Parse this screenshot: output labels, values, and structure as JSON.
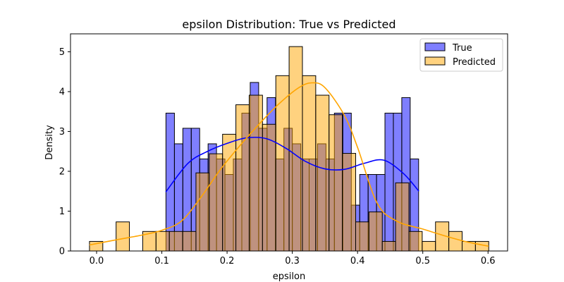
{
  "chart_data": {
    "type": "bar",
    "title": "epsilon Distribution: True vs Predicted",
    "xlabel": "epsilon",
    "ylabel": "Density",
    "xlim": [
      -0.04,
      0.63
    ],
    "ylim": [
      0,
      5.45
    ],
    "xticks": [
      "0.0",
      "0.1",
      "0.2",
      "0.3",
      "0.4",
      "0.5",
      "0.6"
    ],
    "xtick_values": [
      0.0,
      0.1,
      0.2,
      0.3,
      0.4,
      0.5,
      0.6
    ],
    "yticks": [
      "0",
      "1",
      "2",
      "3",
      "4",
      "5"
    ],
    "ytick_values": [
      0,
      1,
      2,
      3,
      4,
      5
    ],
    "grid": false,
    "legend_position": "top-right",
    "series": [
      {
        "name": "True",
        "kind": "histogram",
        "color": "#0000ff",
        "bin_edges": [
          0.1063,
          0.1193,
          0.1322,
          0.1451,
          0.158,
          0.1709,
          0.1838,
          0.1967,
          0.2096,
          0.2226,
          0.2355,
          0.2484,
          0.2613,
          0.2742,
          0.2871,
          0.3,
          0.3129,
          0.3258,
          0.3387,
          0.3516,
          0.3645,
          0.3774,
          0.3904,
          0.4033,
          0.4162,
          0.4291,
          0.442,
          0.4549,
          0.4678,
          0.4807,
          0.4936
        ],
        "values": [
          3.46,
          2.69,
          3.08,
          3.08,
          2.31,
          2.69,
          2.31,
          1.92,
          2.31,
          3.46,
          4.23,
          3.08,
          3.85,
          2.31,
          3.08,
          2.69,
          2.31,
          2.31,
          2.69,
          2.31,
          3.46,
          3.46,
          1.15,
          1.92,
          1.92,
          1.92,
          3.46,
          3.46,
          3.85,
          2.31
        ],
        "kde_x": [
          0.106,
          0.14,
          0.17,
          0.2,
          0.23,
          0.26,
          0.29,
          0.32,
          0.35,
          0.38,
          0.41,
          0.44,
          0.47,
          0.494
        ],
        "kde_y": [
          1.48,
          2.2,
          2.5,
          2.7,
          2.84,
          2.82,
          2.58,
          2.25,
          2.06,
          2.05,
          2.2,
          2.28,
          1.95,
          1.5
        ]
      },
      {
        "name": "Predicted",
        "kind": "histogram",
        "color": "#ffa500",
        "bin_edges": [
          -0.0109,
          0.0095,
          0.0299,
          0.0503,
          0.0707,
          0.0911,
          0.1115,
          0.1319,
          0.1523,
          0.1727,
          0.1931,
          0.2135,
          0.2339,
          0.2543,
          0.2747,
          0.2951,
          0.3155,
          0.3359,
          0.3563,
          0.3767,
          0.3971,
          0.4175,
          0.4379,
          0.4583,
          0.4787,
          0.4991,
          0.5195,
          0.5399,
          0.5603,
          0.5807,
          0.6011
        ],
        "values": [
          0.24,
          0.0,
          0.73,
          0.0,
          0.49,
          0.49,
          0.49,
          0.49,
          1.96,
          2.44,
          2.93,
          3.67,
          3.91,
          3.18,
          4.4,
          5.13,
          4.4,
          3.91,
          3.42,
          2.45,
          0.73,
          0.98,
          0.24,
          1.71,
          0.49,
          0.24,
          0.73,
          0.49,
          0.24,
          0.24
        ],
        "kde_x": [
          -0.011,
          0.03,
          0.07,
          0.1,
          0.13,
          0.16,
          0.19,
          0.22,
          0.25,
          0.28,
          0.31,
          0.33,
          0.35,
          0.38,
          0.4,
          0.43,
          0.46,
          0.5,
          0.54,
          0.57,
          0.601
        ],
        "kde_y": [
          0.15,
          0.28,
          0.4,
          0.52,
          0.75,
          1.35,
          2.05,
          2.65,
          3.2,
          3.7,
          4.1,
          4.22,
          4.1,
          3.4,
          2.6,
          1.2,
          0.75,
          0.55,
          0.35,
          0.22,
          0.12
        ]
      }
    ]
  }
}
